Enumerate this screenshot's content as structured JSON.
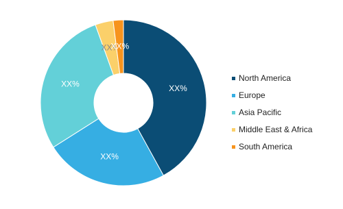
{
  "chart_data": {
    "type": "donut",
    "categories": [
      "North America",
      "Europe",
      "Asia Pacific",
      "Middle East & Africa",
      "South America"
    ],
    "values": [
      42,
      24,
      28.5,
      3.5,
      2
    ],
    "value_labels": [
      "XX%",
      "XX%",
      "XX%",
      "XX%",
      "XX%"
    ],
    "colors": [
      "#0b4d75",
      "#36aee3",
      "#63d0d8",
      "#fbd06a",
      "#f7941d"
    ],
    "legend": "right"
  }
}
